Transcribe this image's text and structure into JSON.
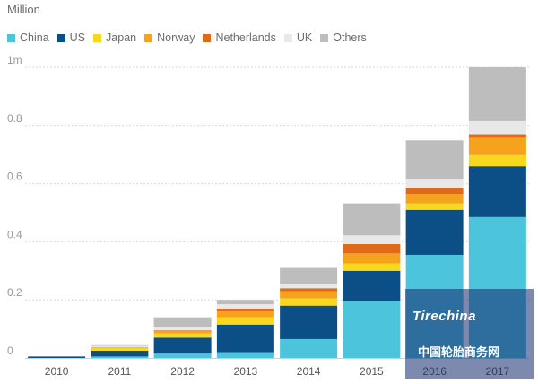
{
  "chart_data": {
    "type": "bar",
    "stacked": true,
    "unit_label": "Million",
    "categories": [
      "2010",
      "2011",
      "2012",
      "2013",
      "2014",
      "2015",
      "2016",
      "2017"
    ],
    "y_ticks": [
      {
        "value": 0,
        "label": "0"
      },
      {
        "value": 0.2,
        "label": "0.2"
      },
      {
        "value": 0.4,
        "label": "0.4"
      },
      {
        "value": 0.6,
        "label": "0.6"
      },
      {
        "value": 0.8,
        "label": "0.8"
      },
      {
        "value": 1.0,
        "label": "1m"
      }
    ],
    "ylim": [
      0,
      1.0
    ],
    "grid": true,
    "legend_position": "top-left",
    "series": [
      {
        "name": "China",
        "color": "#4cc4dc",
        "values": [
          0.0,
          0.005,
          0.015,
          0.02,
          0.065,
          0.195,
          0.355,
          0.485
        ]
      },
      {
        "name": "US",
        "color": "#0b4f86",
        "values": [
          0.005,
          0.02,
          0.055,
          0.095,
          0.115,
          0.105,
          0.155,
          0.175
        ]
      },
      {
        "name": "Japan",
        "color": "#f7d81c",
        "values": [
          0.0,
          0.01,
          0.015,
          0.025,
          0.025,
          0.025,
          0.022,
          0.038
        ]
      },
      {
        "name": "Norway",
        "color": "#f5a31d",
        "values": [
          0.0,
          0.002,
          0.007,
          0.02,
          0.025,
          0.035,
          0.032,
          0.06
        ]
      },
      {
        "name": "Netherlands",
        "color": "#e06a17",
        "values": [
          0.0,
          0.0,
          0.003,
          0.01,
          0.01,
          0.032,
          0.02,
          0.012
        ]
      },
      {
        "name": "UK",
        "color": "#e8e8e8",
        "values": [
          0.0,
          0.005,
          0.01,
          0.015,
          0.015,
          0.03,
          0.03,
          0.045
        ]
      },
      {
        "name": "Others",
        "color": "#bdbdbd",
        "values": [
          0.0,
          0.005,
          0.035,
          0.015,
          0.055,
          0.11,
          0.135,
          0.185
        ]
      }
    ]
  },
  "watermark": {
    "logo_text": "Tirechina",
    "tagline": "中国轮胎商务网"
  }
}
